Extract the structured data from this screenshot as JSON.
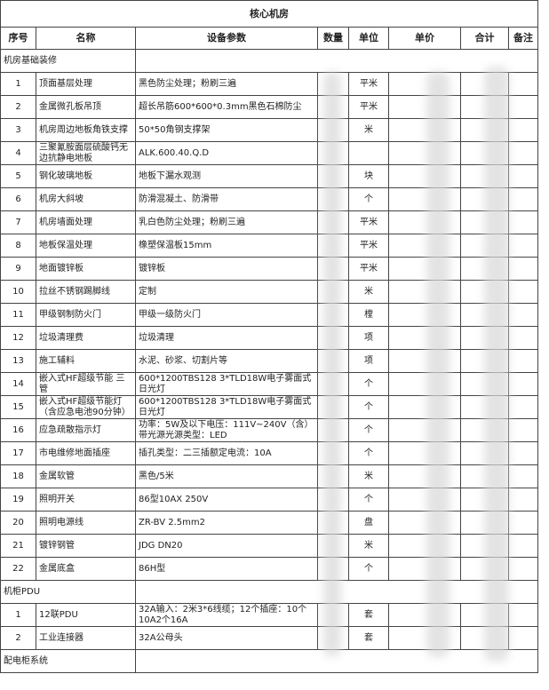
{
  "title": "核心机房",
  "header": [
    "序号",
    "名称",
    "设备参数",
    "数量",
    "单位",
    "单价",
    "合计",
    "备注"
  ],
  "sections": [
    {
      "title": "机房基础装修",
      "rows": [
        {
          "no": "1",
          "name": "顶面基层处理",
          "param": "黑色防尘处理；粉刷三遍",
          "unit": "平米"
        },
        {
          "no": "2",
          "name": "金属微孔板吊顶",
          "param": "超长吊筋600*600*0.3mm黑色石棉防尘",
          "unit": "平米"
        },
        {
          "no": "3",
          "name": "机房周边地板角铁支撑",
          "param": "50*50角钢支撑架",
          "unit": "米"
        },
        {
          "no": "4",
          "name": "三聚氰胺面层硫酸钙无边抗静电地板",
          "param": "ALK.600.40.Q.D"
        },
        {
          "no": "5",
          "name": "钢化玻璃地板",
          "param": "地板下漏水观测",
          "unit": "块"
        },
        {
          "no": "6",
          "name": "机房大斜坡",
          "param": "防滑混凝土、防滑带",
          "unit": "个"
        },
        {
          "no": "7",
          "name": "机房墙面处理",
          "param": "乳白色防尘处理；粉刷三遍",
          "unit": "平米"
        },
        {
          "no": "8",
          "name": "地板保温处理",
          "param": "橡塑保温板15mm",
          "unit": "平米"
        },
        {
          "no": "9",
          "name": "地面镀锌板",
          "param": "镀锌板",
          "unit": "平米"
        },
        {
          "no": "10",
          "name": "拉丝不锈钢踢脚线",
          "param": "定制",
          "unit": "米"
        },
        {
          "no": "11",
          "name": "甲级钢制防火门",
          "param": "甲级一级防火门",
          "unit": "樘"
        },
        {
          "no": "12",
          "name": "垃圾清理费",
          "param": "垃圾清理",
          "unit": "项"
        },
        {
          "no": "13",
          "name": "施工辅料",
          "param": "水泥、砂浆、切割片等",
          "unit": "项"
        },
        {
          "no": "14",
          "name": "嵌入式HF超级节能 三管",
          "param": "600*1200TBS128 3*TLD18W电子雾面式日光灯",
          "unit": "个"
        },
        {
          "no": "15",
          "name": "嵌入式HF超级节能灯（含应急电池90分钟）",
          "param": "600*1200TBS128 3*TLD18W电子雾面式日光灯",
          "unit": "个"
        },
        {
          "no": "16",
          "name": "应急疏散指示灯",
          "param": "功率：5W及以下电压：111V~240V（含）带光源光源类型：LED",
          "unit": "个"
        },
        {
          "no": "17",
          "name": "市电维修地面插座",
          "param": "插孔类型：二三插额定电流：10A",
          "unit": "个"
        },
        {
          "no": "18",
          "name": "金属软管",
          "param": "黑色/5米",
          "unit": "米"
        },
        {
          "no": "19",
          "name": "照明开关",
          "param": "86型10AX 250V",
          "unit": "个"
        },
        {
          "no": "20",
          "name": "照明电源线",
          "param": "ZR-BV 2.5mm2",
          "unit": "盘"
        },
        {
          "no": "21",
          "name": "镀锌钢管",
          "param": "JDG DN20",
          "unit": "米"
        },
        {
          "no": "22",
          "name": "金属底盒",
          "param": "86H型",
          "unit": "个"
        }
      ]
    },
    {
      "title": "机柜PDU",
      "rows": [
        {
          "no": "1",
          "name": "12联PDU",
          "param": "32A输入：2米3*6线缆；12个插座：10个10A2个16A",
          "unit": "套"
        },
        {
          "no": "2",
          "name": "工业连接器",
          "param": "32A公母头",
          "unit": "套"
        }
      ]
    },
    {
      "title": "配电柜系统"
    }
  ]
}
